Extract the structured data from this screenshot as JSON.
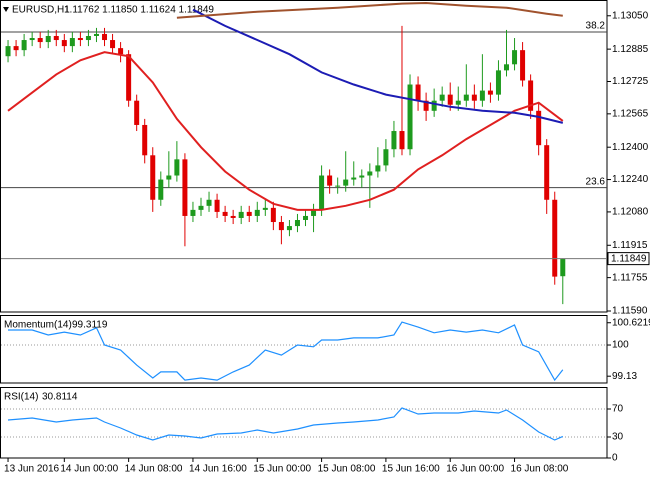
{
  "chart_data": [
    {
      "type": "candlestick",
      "title": "EURUSD,H1",
      "quote": "1.11762 1.11850 1.11624 1.11849",
      "up_color": "#1e9a1e",
      "down_color": "#e00000",
      "xlim": [
        -1,
        74.5
      ],
      "ylim": [
        1.11585,
        1.13128
      ],
      "yticks": [
        {
          "value": 1.1305,
          "label": "1.13050"
        },
        1.12885,
        1.12725,
        1.12565,
        {
          "value": 1.124,
          "label": "1.12400"
        },
        {
          "value": 1.1224,
          "label": "1.12240"
        },
        {
          "value": 1.1208,
          "label": "1.12080"
        },
        1.11915,
        1.11755,
        {
          "value": 1.1159,
          "label": "1.11590"
        }
      ],
      "levels": [
        {
          "label": "38.2",
          "value": 1.1297
        },
        {
          "label": "23.6",
          "value": 1.122
        }
      ],
      "open": [
        1.1285,
        1.129,
        1.1288,
        1.1293,
        1.1294,
        1.1292,
        1.1295,
        1.1293,
        1.129,
        1.1294,
        1.1293,
        1.1295,
        1.1296,
        1.1293,
        1.1289,
        1.1286,
        1.1263,
        1.1251,
        1.1236,
        1.1214,
        1.1224,
        1.1226,
        1.1234,
        1.1206,
        1.1209,
        1.1211,
        1.1214,
        1.1208,
        1.1206,
        1.1205,
        1.1208,
        1.1206,
        1.1209,
        1.121,
        1.1203,
        1.1199,
        1.1201,
        1.1204,
        1.1206,
        1.1209,
        1.1226,
        1.1221,
        1.1221,
        1.1224,
        1.1225,
        1.1226,
        1.1228,
        1.1231,
        1.1239,
        1.1248,
        1.1239,
        1.1271,
        1.1263,
        1.1258,
        1.1263,
        1.1266,
        1.1261,
        1.1263,
        1.1266,
        1.1263,
        1.1268,
        1.1266,
        1.1278,
        1.1281,
        1.1288,
        1.1273,
        1.1258,
        1.1241,
        1.1214,
        1.11762
      ],
      "high": [
        1.1293,
        1.1293,
        1.1296,
        1.1297,
        1.1297,
        1.1298,
        1.1298,
        1.1296,
        1.1297,
        1.1297,
        1.1298,
        1.1299,
        1.1299,
        1.1296,
        1.1292,
        1.1288,
        1.1266,
        1.1254,
        1.124,
        1.1228,
        1.1238,
        1.1243,
        1.1237,
        1.1213,
        1.1215,
        1.1218,
        1.1217,
        1.1211,
        1.1209,
        1.1211,
        1.1211,
        1.1213,
        1.1214,
        1.1213,
        1.1206,
        1.1204,
        1.1207,
        1.1209,
        1.1212,
        1.1231,
        1.1229,
        1.1225,
        1.1238,
        1.1233,
        1.1229,
        1.1232,
        1.124,
        1.1244,
        1.1253,
        1.13,
        1.1276,
        1.1275,
        1.1267,
        1.1269,
        1.127,
        1.1272,
        1.127,
        1.1281,
        1.1271,
        1.1286,
        1.1272,
        1.1283,
        1.1298,
        1.1294,
        1.1292,
        1.1276,
        1.1262,
        1.1244,
        1.1218,
        1.1185
      ],
      "low": [
        1.1282,
        1.1285,
        1.1285,
        1.129,
        1.1289,
        1.1289,
        1.129,
        1.1287,
        1.1287,
        1.129,
        1.129,
        1.1292,
        1.129,
        1.1286,
        1.1282,
        1.126,
        1.1248,
        1.1232,
        1.1208,
        1.1211,
        1.122,
        1.1223,
        1.1191,
        1.1203,
        1.1206,
        1.1208,
        1.1205,
        1.1203,
        1.1202,
        1.1202,
        1.1203,
        1.1203,
        1.1206,
        1.1199,
        1.1192,
        1.1196,
        1.1198,
        1.1201,
        1.1198,
        1.1206,
        1.1217,
        1.1217,
        1.1218,
        1.1221,
        1.122,
        1.121,
        1.1225,
        1.1228,
        1.1235,
        1.1236,
        1.1236,
        1.1258,
        1.1253,
        1.1255,
        1.126,
        1.1258,
        1.1258,
        1.126,
        1.1259,
        1.126,
        1.1262,
        1.1263,
        1.1275,
        1.1278,
        1.127,
        1.1254,
        1.1236,
        1.1207,
        1.1172,
        1.11624
      ],
      "close": [
        1.129,
        1.1288,
        1.1293,
        1.1294,
        1.1292,
        1.1295,
        1.1293,
        1.129,
        1.1294,
        1.1293,
        1.1295,
        1.1296,
        1.1293,
        1.1289,
        1.1286,
        1.1263,
        1.1251,
        1.1236,
        1.1214,
        1.1224,
        1.1226,
        1.1234,
        1.1206,
        1.1209,
        1.1211,
        1.1214,
        1.1208,
        1.1206,
        1.1205,
        1.1208,
        1.1206,
        1.1209,
        1.121,
        1.1203,
        1.1199,
        1.1201,
        1.1204,
        1.1206,
        1.1209,
        1.1226,
        1.1221,
        1.1221,
        1.1224,
        1.1225,
        1.1226,
        1.1228,
        1.1231,
        1.1239,
        1.1248,
        1.1239,
        1.1271,
        1.1263,
        1.1258,
        1.1263,
        1.1266,
        1.1261,
        1.1263,
        1.1266,
        1.1263,
        1.1268,
        1.1266,
        1.1278,
        1.1281,
        1.1288,
        1.1273,
        1.1258,
        1.1241,
        1.1214,
        1.1176,
        1.11849
      ],
      "overlays": [
        {
          "color": "#e02020",
          "x": [
            0,
            3,
            6,
            9,
            12,
            15,
            18,
            21,
            24,
            27,
            30,
            33,
            36,
            39,
            42,
            45,
            48,
            51,
            54,
            57,
            60,
            63,
            66,
            69
          ],
          "values": [
            1.1258,
            1.1267,
            1.1276,
            1.1283,
            1.1287,
            1.1285,
            1.1272,
            1.1254,
            1.124,
            1.1228,
            1.1219,
            1.1212,
            1.1209,
            1.1209,
            1.1211,
            1.1214,
            1.1219,
            1.1229,
            1.1236,
            1.1244,
            1.1251,
            1.1258,
            1.1262,
            1.1253
          ]
        },
        {
          "color": "#1c1cb4",
          "x": [
            23,
            27,
            31,
            35,
            39,
            43,
            47,
            51,
            55,
            59,
            63,
            66,
            69
          ],
          "values": [
            1.1308,
            1.13,
            1.1293,
            1.1286,
            1.1277,
            1.1271,
            1.1266,
            1.1263,
            1.126,
            1.1258,
            1.1257,
            1.1255,
            1.1252
          ]
        },
        {
          "color": "#a0522d",
          "x": [
            21,
            31,
            41,
            49,
            52,
            57,
            62,
            67,
            69
          ],
          "values": [
            1.1304,
            1.1307,
            1.1309,
            1.1311,
            1.13113,
            1.131,
            1.1309,
            1.1306,
            1.1305
          ]
        }
      ]
    },
    {
      "type": "line",
      "title": "Momentum(14)",
      "color": "#1e90ff",
      "ylim": [
        98.94,
        100.81
      ],
      "yticks": [
        100.6219,
        100,
        99.13
      ],
      "levels": [
        100
      ],
      "x": [
        0,
        3,
        5,
        7,
        9,
        11,
        12,
        14,
        16,
        18,
        19,
        21,
        22,
        24,
        26,
        28,
        30,
        32,
        34,
        36,
        38,
        39,
        41,
        43,
        46,
        48,
        49,
        51,
        53,
        55,
        57,
        59,
        61,
        63,
        64,
        66,
        68,
        69
      ],
      "values": [
        100.42,
        100.42,
        100.28,
        100.36,
        100.28,
        100.48,
        100.0,
        99.86,
        99.44,
        99.08,
        99.25,
        99.25,
        99.02,
        99.08,
        99.02,
        99.25,
        99.44,
        99.86,
        99.72,
        100.0,
        99.95,
        100.14,
        100.14,
        100.2,
        100.2,
        100.28,
        100.64,
        100.5,
        100.34,
        100.42,
        100.36,
        100.42,
        100.34,
        100.56,
        100.0,
        99.81,
        99.02,
        99.3119
      ]
    },
    {
      "type": "line",
      "title": "RSI(14)",
      "color": "#1e90ff",
      "ylim": [
        0,
        100
      ],
      "yticks": [
        70,
        30,
        0
      ],
      "levels": [
        70,
        30
      ],
      "x": [
        0,
        3,
        6,
        8,
        11,
        12,
        14,
        16,
        18,
        20,
        22,
        24,
        26,
        29,
        31,
        33,
        36,
        38,
        41,
        43,
        46,
        48,
        49,
        51,
        53,
        56,
        58,
        61,
        62,
        64,
        66,
        68,
        69
      ],
      "values": [
        54.3,
        57.1,
        51.4,
        54.3,
        57.1,
        51.4,
        42.9,
        32.9,
        25.7,
        32.9,
        31.4,
        28.6,
        34.3,
        35.7,
        40.0,
        35.7,
        41.4,
        47.1,
        50.0,
        51.4,
        54.3,
        58.6,
        71.4,
        62.9,
        64.3,
        64.3,
        67.1,
        64.3,
        68.6,
        54.3,
        37.1,
        25.7,
        30.8114
      ],
      "xticks": [
        {
          "value": 0,
          "label": "13 Jun 2016"
        },
        {
          "value": 7,
          "label": "14 Jun 00:00"
        },
        {
          "value": 15,
          "label": "14 Jun 08:00"
        },
        {
          "value": 23,
          "label": "14 Jun 16:00"
        },
        {
          "value": 31,
          "label": "15 Jun 00:00"
        },
        {
          "value": 39,
          "label": "15 Jun 08:00"
        },
        {
          "value": 47,
          "label": "15 Jun 16:00"
        },
        {
          "value": 55,
          "label": "16 Jun 00:00"
        },
        {
          "value": 63,
          "label": "16 Jun 08:00"
        }
      ]
    }
  ]
}
